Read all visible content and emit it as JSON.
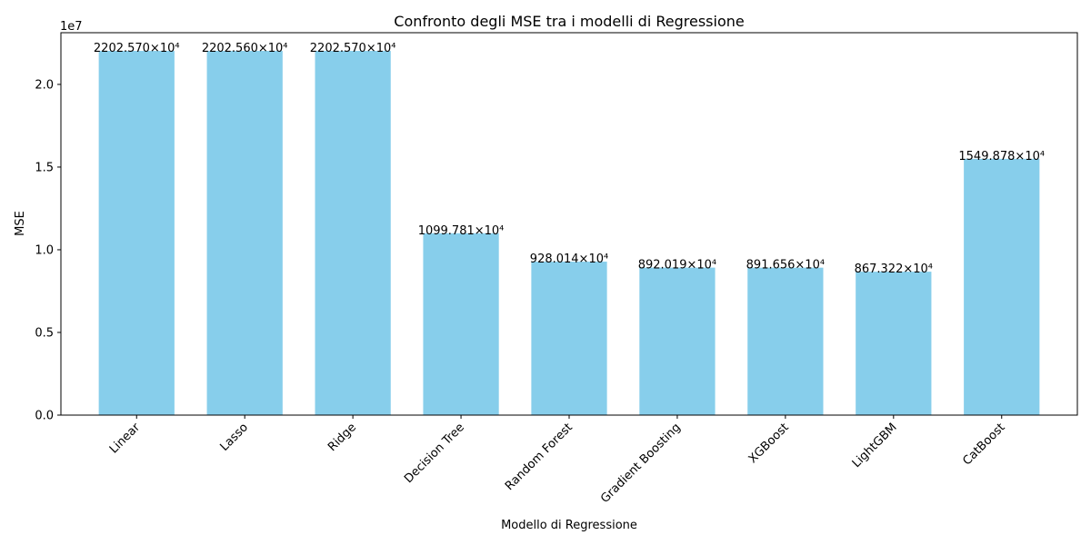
{
  "chart_data": {
    "type": "bar",
    "title": "Confronto degli MSE tra i modelli di Regressione",
    "xlabel": "Modello di Regressione",
    "ylabel": "MSE",
    "scale_text": "1e7",
    "categories": [
      "Linear",
      "Lasso",
      "Ridge",
      "Decision Tree",
      "Random Forest",
      "Gradient Boosting",
      "XGBoost",
      "LightGBM",
      "CatBoost"
    ],
    "values": [
      22025700,
      22025600,
      22025700,
      10997810,
      9280140,
      8920190,
      8916560,
      8673220,
      15498780
    ],
    "data_labels": [
      "2202.570×10⁴",
      "2202.560×10⁴",
      "2202.570×10⁴",
      "1099.781×10⁴",
      "928.014×10⁴",
      "892.019×10⁴",
      "891.656×10⁴",
      "867.322×10⁴",
      "1549.878×10⁴"
    ],
    "yticks": [
      0,
      5000000,
      10000000,
      15000000,
      20000000
    ],
    "ytick_labels": [
      "0.0",
      "0.5",
      "1.0",
      "1.5",
      "2.0"
    ],
    "ylim": [
      0,
      23126985
    ],
    "bar_color": "#87ceeb",
    "grid": false,
    "legend": "none"
  }
}
